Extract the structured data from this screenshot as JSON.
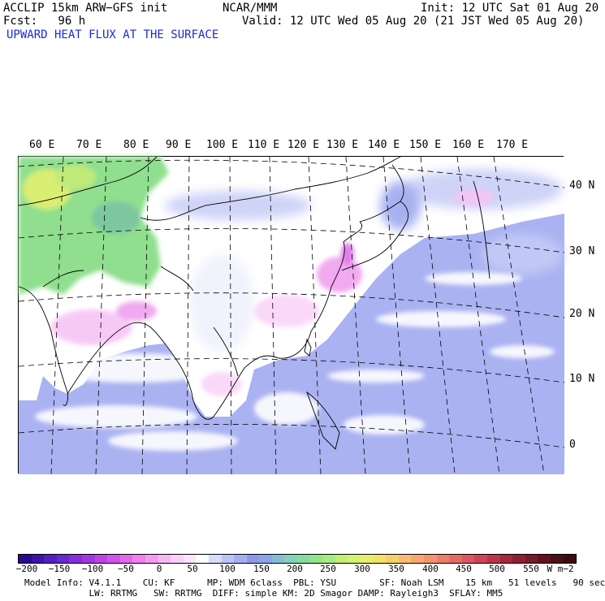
{
  "header": {
    "model": "ACCLIP 15km ARW−GFS init",
    "center": "NCAR/MMM",
    "init": "Init: 12 UTC Sat 01 Aug 20",
    "fcst": "Fcst:   96 h",
    "valid": "Valid: 12 UTC Wed 05 Aug 20 (21 JST Wed 05 Aug 20)",
    "field": "UPWARD HEAT FLUX AT THE SURFACE"
  },
  "map": {
    "lon_labels": [
      "60 E",
      "70 E",
      "80 E",
      "90 E",
      "100 E",
      "110 E",
      "120 E",
      "130 E",
      "140 E",
      "150 E",
      "160 E",
      "170 E"
    ],
    "lat_labels": [
      "40 N",
      "30 N",
      "20 N",
      "10 N",
      "0"
    ]
  },
  "colorbar": {
    "ticks": [
      "−200",
      "−150",
      "−100",
      "−50",
      "0",
      "50",
      "100",
      "150",
      "200",
      "250",
      "300",
      "350",
      "400",
      "450",
      "500",
      "550"
    ],
    "units": "W m−2",
    "colors": [
      "#2a0a8c",
      "#3b14a8",
      "#5220c0",
      "#6a28cf",
      "#8430d8",
      "#a038de",
      "#b845e4",
      "#cf55e8",
      "#e068ea",
      "#ec80ec",
      "#f29cf0",
      "#f6b8f4",
      "#f9d0f8",
      "#fce4fb",
      "#ffffff",
      "#d8dcfa",
      "#bcc4f6",
      "#a6aef2",
      "#9096ec",
      "#8aa4e8",
      "#86bcd8",
      "#84d0b8",
      "#86dca0",
      "#94e48c",
      "#a8ea80",
      "#c0ee78",
      "#d6f070",
      "#e8ee6c",
      "#f2e268",
      "#f6d06a",
      "#f8bc70",
      "#f6a872",
      "#f29470",
      "#ec7e6c",
      "#e46a66",
      "#da5660",
      "#cc4456",
      "#ba344a",
      "#a4283e",
      "#8c2032",
      "#741a28",
      "#5e1420",
      "#4a1018",
      "#3a0c10"
    ]
  },
  "footer": {
    "line1": "Model Info: V4.1.1    CU: KF      MP: WDM 6class  PBL: YSU        SF: Noah LSM    15 km   51 levels   90 sec",
    "line2": "            LW: RRTMG   SW: RRTMG  DIFF: simple KM: 2D Smagor DAMP: Rayleigh3  SFLAY: MM5"
  }
}
